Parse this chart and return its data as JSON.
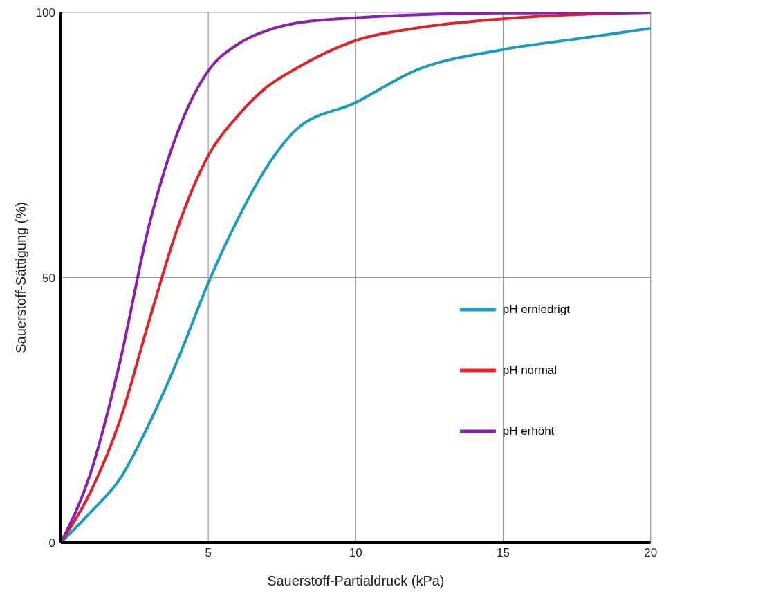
{
  "chart_data": {
    "type": "line",
    "xlabel": "Sauerstoff-Partialdruck (kPa)",
    "ylabel": "Sauerstoff-Sättigung (%)",
    "xlim": [
      0,
      20
    ],
    "xticks": [
      5,
      10,
      15,
      20
    ],
    "ylim": [
      0,
      100
    ],
    "yticks": [
      0,
      50,
      100
    ],
    "grid": true,
    "legend": "right",
    "marker": "none",
    "line_style": "solid",
    "series": [
      {
        "name": "pH erniedrigt",
        "color": "#1a9bc0",
        "x": [
          0,
          1,
          2,
          3,
          4,
          5,
          6,
          7,
          8,
          10,
          12,
          15,
          17.5,
          20
        ],
        "values": [
          0,
          5.7,
          12,
          22.5,
          35,
          49,
          61,
          71,
          78,
          83,
          89,
          93,
          95,
          97
        ]
      },
      {
        "name": "pH normal",
        "color": "#e32129",
        "x": [
          0,
          1,
          2,
          3,
          4,
          5,
          6,
          7,
          8,
          10,
          12,
          15,
          20
        ],
        "values": [
          0,
          9.5,
          23,
          42,
          60,
          73,
          80.5,
          86,
          89.5,
          94.7,
          97,
          98.8,
          100
        ]
      },
      {
        "name": "pH erhöht",
        "color": "#8a1fb0",
        "x": [
          0,
          1,
          2,
          3,
          4,
          5,
          6,
          7,
          8,
          10,
          15,
          20
        ],
        "values": [
          0,
          13,
          34,
          60,
          78,
          89,
          94,
          96.6,
          98,
          99,
          99.9,
          100
        ]
      }
    ]
  }
}
